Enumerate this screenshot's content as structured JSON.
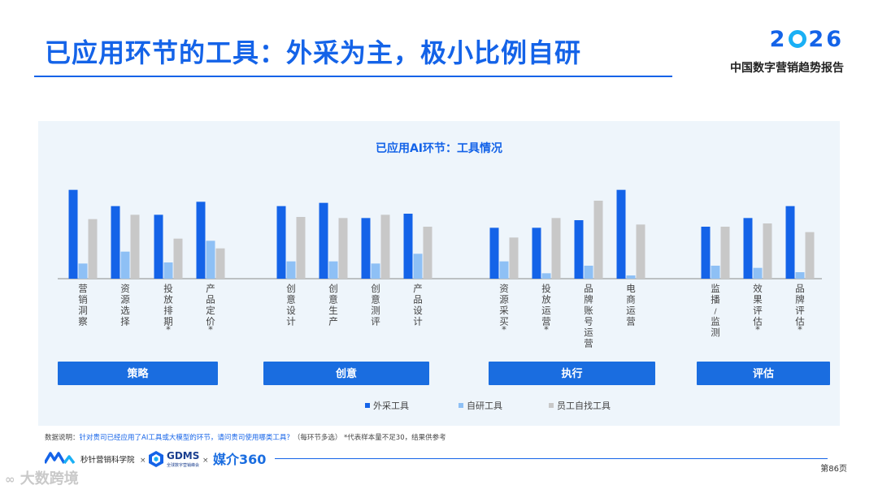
{
  "header": {
    "title": "已应用环节的工具：外采为主，极小比例自研",
    "brand_year_left": "2",
    "brand_year_right": "26",
    "brand_subtitle": "中国数字营销趋势报告"
  },
  "chart_data": {
    "type": "bar",
    "title": "已应用AI环节：工具情况",
    "categories": [
      "营销洞察",
      "资源选择",
      "投放排期*",
      "产品定价*",
      "创意设计",
      "创意生产",
      "创意测评",
      "产品设计",
      "资源采买*",
      "投放运营*",
      "品牌账号运营",
      "电商运营",
      "监播/监测",
      "效果评估*",
      "品牌评估*"
    ],
    "groups": [
      {
        "label": "策略",
        "categories": [
          0,
          1,
          2,
          3
        ]
      },
      {
        "label": "创意",
        "categories": [
          4,
          5,
          6,
          7
        ]
      },
      {
        "label": "执行",
        "categories": [
          8,
          9,
          10,
          11
        ]
      },
      {
        "label": "评估",
        "categories": [
          12,
          13,
          14
        ]
      }
    ],
    "series": [
      {
        "name": "外采工具",
        "color": "#1463e8",
        "values": [
          82,
          67,
          59,
          71,
          67,
          70,
          56,
          60,
          47,
          47,
          54,
          82,
          48,
          56,
          67
        ]
      },
      {
        "name": "自研工具",
        "color": "#8ec0f5",
        "values": [
          14,
          25,
          15,
          35,
          16,
          16,
          14,
          23,
          16,
          5,
          12,
          3,
          12,
          10,
          6
        ]
      },
      {
        "name": "员工自找工具",
        "color": "#c8c8c8",
        "values": [
          55,
          59,
          37,
          28,
          57,
          56,
          59,
          48,
          38,
          56,
          72,
          50,
          48,
          51,
          43
        ]
      }
    ],
    "ylim": [
      0,
      90
    ],
    "grid": false,
    "legend": "bottom"
  },
  "note": {
    "prefix": "数据说明：",
    "question": "针对贵司已经应用了AI工具或大模型的环节，请问贵司使用哪类工具？",
    "suffix": "（每环节多选） *代表样本量不足30，结果供参考"
  },
  "footer": {
    "org1": "秒针营销科学院",
    "times": "×",
    "org2": "GDMS",
    "org2_sub": "全球数字营销峰会",
    "org3": "媒介360",
    "page": "第86页"
  },
  "watermark": "大数跨境"
}
